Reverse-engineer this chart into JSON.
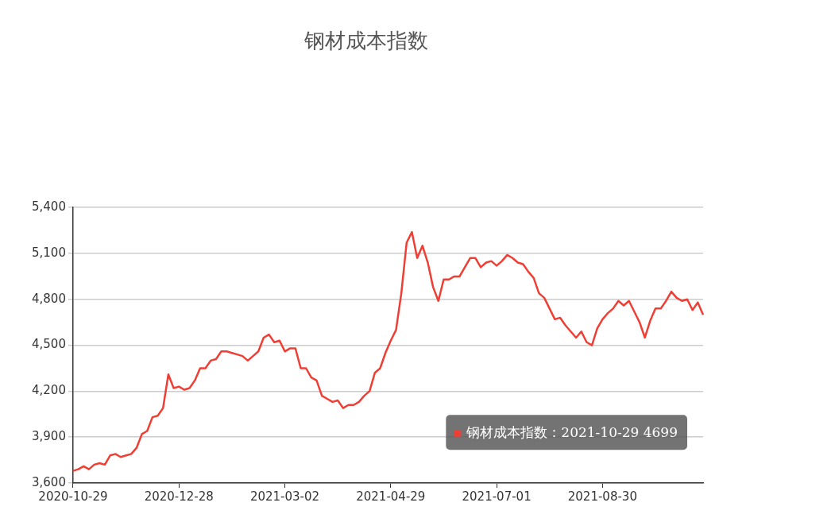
{
  "chart_data": {
    "type": "line",
    "title": "钢材成本指数",
    "categories": [
      "2020-10-29",
      null,
      null,
      null,
      null,
      null,
      null,
      null,
      null,
      null,
      null,
      null,
      null,
      null,
      null,
      null,
      null,
      null,
      null,
      null,
      "2020-12-28",
      null,
      null,
      null,
      null,
      null,
      null,
      null,
      null,
      null,
      null,
      null,
      null,
      null,
      null,
      null,
      null,
      null,
      null,
      null,
      "2021-03-02",
      null,
      null,
      null,
      null,
      null,
      null,
      null,
      null,
      null,
      null,
      null,
      null,
      null,
      null,
      null,
      null,
      null,
      null,
      null,
      "2021-04-29",
      null,
      null,
      null,
      null,
      null,
      null,
      null,
      null,
      null,
      null,
      null,
      null,
      null,
      null,
      null,
      null,
      null,
      null,
      null,
      "2021-07-01",
      null,
      null,
      null,
      null,
      null,
      null,
      null,
      null,
      null,
      null,
      null,
      null,
      null,
      null,
      null,
      null,
      null,
      null,
      null,
      "2021-08-30",
      null,
      null,
      null,
      null,
      null,
      null,
      null,
      null,
      null,
      null,
      null,
      null,
      null,
      null,
      null,
      null,
      null,
      null,
      null
    ],
    "series": [
      {
        "name": "钢材成本指数",
        "color": "#ef3f35",
        "values": [
          3680,
          3690,
          3710,
          3690,
          3720,
          3730,
          3720,
          3780,
          3790,
          3770,
          3780,
          3790,
          3830,
          3920,
          3940,
          4030,
          4040,
          4090,
          4310,
          4220,
          4230,
          4210,
          4220,
          4270,
          4350,
          4350,
          4400,
          4410,
          4460,
          4460,
          4450,
          4440,
          4430,
          4400,
          4430,
          4460,
          4550,
          4570,
          4520,
          4530,
          4460,
          4480,
          4480,
          4350,
          4350,
          4290,
          4270,
          4170,
          4150,
          4130,
          4140,
          4090,
          4110,
          4110,
          4130,
          4170,
          4200,
          4320,
          4350,
          4450,
          4530,
          4600,
          4840,
          5170,
          5240,
          5070,
          5150,
          5040,
          4880,
          4790,
          4930,
          4930,
          4950,
          4950,
          5010,
          5070,
          5070,
          5010,
          5040,
          5050,
          5020,
          5050,
          5090,
          5070,
          5040,
          5030,
          4980,
          4940,
          4840,
          4810,
          4740,
          4670,
          4680,
          4630,
          4590,
          4550,
          4590,
          4520,
          4500,
          4610,
          4670,
          4710,
          4740,
          4790,
          4760,
          4790,
          4720,
          4650,
          4550,
          4660,
          4740,
          4740,
          4790,
          4850,
          4810,
          4790,
          4800,
          4730,
          4780,
          4699
        ]
      }
    ],
    "ylim": [
      3600,
      5400
    ],
    "yticks": [
      {
        "value": 3600,
        "label": "3,600"
      },
      {
        "value": 3900,
        "label": "3,900"
      },
      {
        "value": 4200,
        "label": "4,200"
      },
      {
        "value": 4500,
        "label": "4,500"
      },
      {
        "value": 4800,
        "label": "4,800"
      },
      {
        "value": 5100,
        "label": "5,100"
      },
      {
        "value": 5400,
        "label": "5,400"
      }
    ],
    "grid": "y",
    "legend": "bottom right",
    "line_style": "solid",
    "annotations": [
      "：2021-10-29 4699"
    ]
  }
}
